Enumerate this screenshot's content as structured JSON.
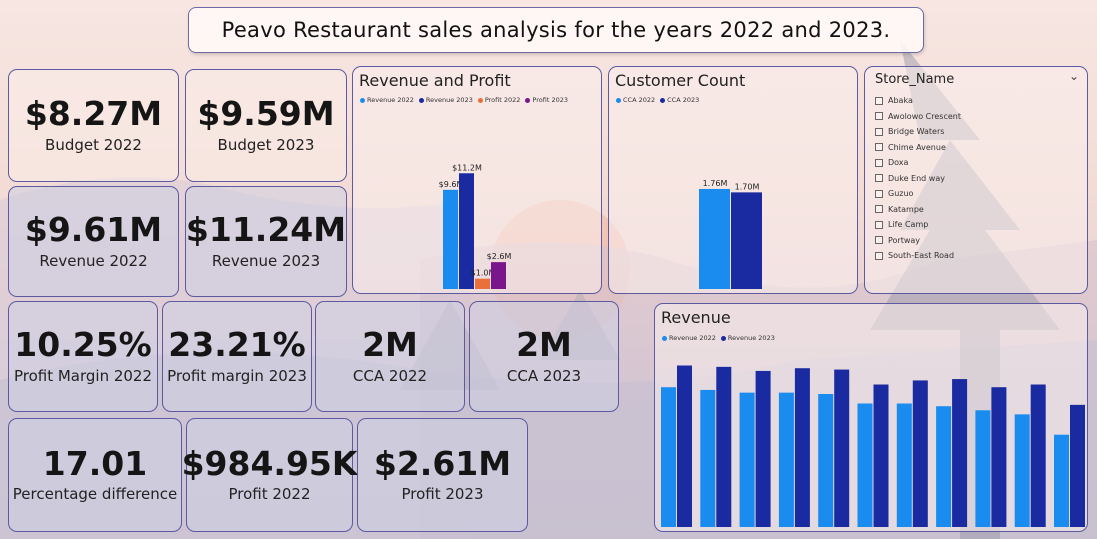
{
  "header": {
    "title": "Peavo Restaurant sales analysis for the years 2022 and 2023."
  },
  "kpis": {
    "budget_2022": {
      "value": "$8.27M",
      "label": "Budget 2022"
    },
    "budget_2023": {
      "value": "$9.59M",
      "label": "Budget 2023"
    },
    "revenue_2022": {
      "value": "$9.61M",
      "label": "Revenue 2022"
    },
    "revenue_2023": {
      "value": "$11.24M",
      "label": "Revenue 2023"
    },
    "profit_margin_2022": {
      "value": "10.25%",
      "label": "Profit Margin 2022"
    },
    "profit_margin_2023": {
      "value": "23.21%",
      "label": "Profit margin 2023"
    },
    "cca_2022": {
      "value": "2M",
      "label": "CCA 2022"
    },
    "cca_2023": {
      "value": "2M",
      "label": "CCA 2023"
    },
    "pct_diff": {
      "value": "17.01",
      "label": "Percentage difference"
    },
    "profit_2022": {
      "value": "$984.95K",
      "label": "Profit 2022"
    },
    "profit_2023": {
      "value": "$2.61M",
      "label": "Profit 2023"
    }
  },
  "slicer": {
    "title": "Store_Name",
    "items": [
      "Abaka",
      "Awolowo Crescent",
      "Bridge Waters",
      "Chime Avenue",
      "Doxa",
      "Duke End way",
      "Guzuo",
      "Katampe",
      "Life Camp",
      "Portway",
      "South-East Road"
    ]
  },
  "colors": {
    "rev2022": "#1a8cf0",
    "rev2023": "#1a2aa0",
    "profit2022": "#e8703a",
    "profit2023": "#7a168c"
  },
  "chart_data": [
    {
      "type": "bar",
      "title": "Revenue and Profit",
      "series": [
        {
          "name": "Revenue 2022",
          "value": 9.6,
          "label": "$9.6M",
          "color": "#1a8cf0"
        },
        {
          "name": "Revenue 2023",
          "value": 11.2,
          "label": "$11.2M",
          "color": "#1a2aa0"
        },
        {
          "name": "Profit 2022",
          "value": 1.0,
          "label": "$1.0M",
          "color": "#e8703a"
        },
        {
          "name": "Profit 2023",
          "value": 2.6,
          "label": "$2.6M",
          "color": "#7a168c"
        }
      ],
      "ylim": [
        0,
        12
      ]
    },
    {
      "type": "bar",
      "title": "Customer Count",
      "series": [
        {
          "name": "CCA 2022",
          "value": 1.76,
          "label": "1.76M",
          "color": "#1a8cf0"
        },
        {
          "name": "CCA 2023",
          "value": 1.7,
          "label": "1.70M",
          "color": "#1a2aa0"
        }
      ],
      "ylim": [
        0,
        1.9
      ]
    },
    {
      "type": "bar",
      "title": "Revenue",
      "series": [
        {
          "name": "Revenue 2022",
          "color": "#1a8cf0",
          "values": [
            1.03,
            1.01,
            0.99,
            0.99,
            0.98,
            0.91,
            0.91,
            0.89,
            0.86,
            0.83,
            0.68
          ]
        },
        {
          "name": "Revenue 2023",
          "color": "#1a2aa0",
          "values": [
            1.19,
            1.18,
            1.15,
            1.17,
            1.16,
            1.05,
            1.08,
            1.09,
            1.03,
            1.05,
            0.9
          ]
        }
      ],
      "ylim": [
        0,
        1.4
      ]
    }
  ]
}
